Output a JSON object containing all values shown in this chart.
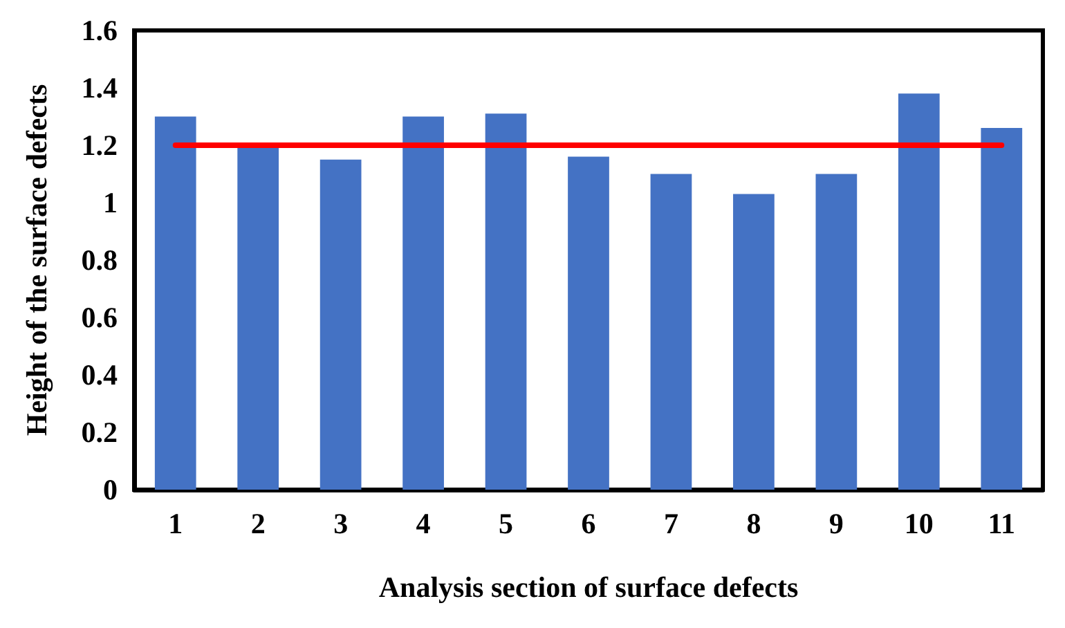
{
  "chart_data": {
    "type": "bar",
    "xlabel": "Analysis section of surface defects",
    "ylabel": "Height of the surface defects",
    "categories": [
      "1",
      "2",
      "3",
      "4",
      "5",
      "6",
      "7",
      "8",
      "9",
      "10",
      "11"
    ],
    "series": [
      {
        "color": "#4472c4",
        "values": [
          1.3,
          1.2,
          1.15,
          1.3,
          1.31,
          1.16,
          1.1,
          1.03,
          1.1,
          1.38,
          1.26
        ]
      },
      {
        "type": "line",
        "color": "#ff0000",
        "values": [
          1.2,
          1.2,
          1.2,
          1.2,
          1.2,
          1.2,
          1.2,
          1.2,
          1.2,
          1.2,
          1.2
        ],
        "marker": "none",
        "line_style": "solid"
      }
    ],
    "ylim": [
      0,
      1.6
    ],
    "yticks": [
      0,
      0.2,
      0.4,
      0.6,
      0.8,
      1,
      1.2,
      1.4,
      1.6
    ],
    "grid": false
  }
}
